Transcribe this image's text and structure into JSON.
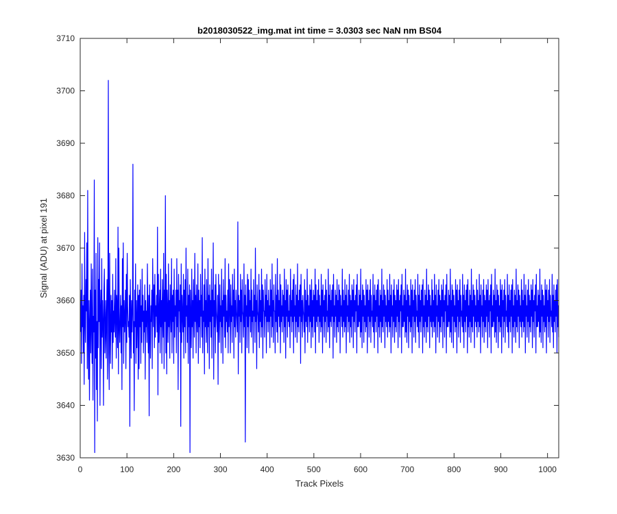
{
  "chart_data": {
    "type": "line",
    "title": "b2018030522_img.mat int time = 3.0303 sec  NaN nm BS04",
    "xlabel": "Track Pixels",
    "ylabel": "Signal (ADU) at pixel 191",
    "xlim": [
      0,
      1024
    ],
    "ylim": [
      3630,
      3710
    ],
    "xticks": [
      0,
      100,
      200,
      300,
      400,
      500,
      600,
      700,
      800,
      900,
      1000
    ],
    "yticks": [
      3630,
      3640,
      3650,
      3660,
      3670,
      3680,
      3690,
      3700,
      3710
    ],
    "grid": false,
    "legend": "none",
    "series_color": "#0000ff",
    "series": [
      {
        "x_start": 1,
        "x_step": 1,
        "values": [
          3654,
          3662,
          3648,
          3667,
          3655,
          3659,
          3650,
          3661,
          3644,
          3673,
          3656,
          3652,
          3664,
          3658,
          3671,
          3647,
          3681,
          3653,
          3645,
          3660,
          3641,
          3656,
          3662,
          3650,
          3667,
          3655,
          3648,
          3666,
          3641,
          3657,
          3654,
          3683,
          3631,
          3662,
          3649,
          3669,
          3643,
          3656,
          3637,
          3672,
          3651,
          3664,
          3656,
          3671,
          3640,
          3658,
          3662,
          3647,
          3668,
          3653,
          3660,
          3656,
          3640,
          3662,
          3666,
          3650,
          3654,
          3660,
          3649,
          3657,
          3664,
          3645,
          3660,
          3702,
          3650,
          3643,
          3669,
          3655,
          3648,
          3661,
          3654,
          3660,
          3647,
          3665,
          3652,
          3658,
          3654,
          3662,
          3656,
          3653,
          3668,
          3649,
          3661,
          3659,
          3651,
          3674,
          3646,
          3670,
          3655,
          3652,
          3657,
          3661,
          3650,
          3659,
          3643,
          3668,
          3655,
          3671,
          3648,
          3660,
          3654,
          3657,
          3662,
          3647,
          3665,
          3652,
          3669,
          3659,
          3655,
          3656,
          3653,
          3661,
          3636,
          3664,
          3658,
          3649,
          3660,
          3654,
          3658,
          3686,
          3650,
          3656,
          3639,
          3662,
          3655,
          3667,
          3648,
          3660,
          3651,
          3657,
          3663,
          3645,
          3661,
          3647,
          3662,
          3655,
          3664,
          3648,
          3659,
          3652,
          3666,
          3656,
          3661,
          3650,
          3658,
          3654,
          3663,
          3645,
          3660,
          3655,
          3658,
          3652,
          3667,
          3657,
          3650,
          3661,
          3638,
          3663,
          3655,
          3649,
          3659,
          3656,
          3662,
          3647,
          3668,
          3660,
          3655,
          3663,
          3651,
          3665,
          3653,
          3659,
          3657,
          3661,
          3654,
          3674,
          3642,
          3665,
          3652,
          3658,
          3662,
          3650,
          3666,
          3655,
          3660,
          3648,
          3664,
          3657,
          3653,
          3669,
          3647,
          3662,
          3656,
          3680,
          3650,
          3665,
          3646,
          3662,
          3658,
          3652,
          3667,
          3655,
          3660,
          3649,
          3663,
          3658,
          3654,
          3668,
          3650,
          3661,
          3656,
          3662,
          3648,
          3666,
          3653,
          3659,
          3657,
          3662,
          3650,
          3668,
          3655,
          3662,
          3643,
          3665,
          3658,
          3660,
          3654,
          3663,
          3636,
          3667,
          3652,
          3661,
          3657,
          3654,
          3665,
          3649,
          3662,
          3655,
          3664,
          3650,
          3670,
          3657,
          3659,
          3652,
          3666,
          3648,
          3661,
          3655,
          3663,
          3631,
          3662,
          3657,
          3651,
          3666,
          3655,
          3660,
          3649,
          3664,
          3658,
          3653,
          3669,
          3656,
          3661,
          3650,
          3663,
          3657,
          3654,
          3667,
          3648,
          3662,
          3655,
          3660,
          3651,
          3665,
          3657,
          3661,
          3653,
          3672,
          3650,
          3658,
          3656,
          3663,
          3646,
          3666,
          3655,
          3660,
          3652,
          3664,
          3657,
          3650,
          3668,
          3655,
          3661,
          3647,
          3663,
          3656,
          3660,
          3653,
          3666,
          3649,
          3662,
          3657,
          3671,
          3645,
          3660,
          3655,
          3663,
          3650,
          3665,
          3658,
          3656,
          3654,
          3661,
          3644,
          3665,
          3657,
          3652,
          3663,
          3656,
          3659,
          3650,
          3666,
          3655,
          3660,
          3648,
          3664,
          3657,
          3661,
          3653,
          3668,
          3651,
          3661,
          3656,
          3658,
          3654,
          3662,
          3650,
          3667,
          3655,
          3664,
          3658,
          3650,
          3663,
          3656,
          3659,
          3652,
          3665,
          3657,
          3662,
          3649,
          3666,
          3655,
          3660,
          3653,
          3662,
          3658,
          3656,
          3654,
          3675,
          3646,
          3661,
          3657,
          3660,
          3652,
          3665,
          3656,
          3662,
          3650,
          3664,
          3658,
          3657,
          3653,
          3667,
          3655,
          3661,
          3633,
          3663,
          3657,
          3659,
          3651,
          3665,
          3655,
          3664,
          3650,
          3662,
          3657,
          3660,
          3654,
          3666,
          3653,
          3662,
          3656,
          3658,
          3650,
          3664,
          3657,
          3661,
          3652,
          3670,
          3656,
          3660,
          3647,
          3663,
          3658,
          3657,
          3654,
          3665,
          3651,
          3662,
          3656,
          3660,
          3653,
          3666,
          3655,
          3663,
          3649,
          3662,
          3658,
          3658,
          3653,
          3664,
          3657,
          3661,
          3650,
          3665,
          3656,
          3660,
          3654,
          3662,
          3656,
          3659,
          3651,
          3664,
          3657,
          3662,
          3653,
          3667,
          3655,
          3660,
          3652,
          3663,
          3658,
          3658,
          3650,
          3665,
          3656,
          3661,
          3654,
          3668,
          3652,
          3662,
          3657,
          3660,
          3655,
          3665,
          3650,
          3663,
          3656,
          3659,
          3654,
          3662,
          3657,
          3661,
          3652,
          3666,
          3655,
          3660,
          3649,
          3664,
          3657,
          3662,
          3653,
          3663,
          3656,
          3658,
          3655,
          3661,
          3651,
          3666,
          3657,
          3660,
          3654,
          3662,
          3656,
          3664,
          3650,
          3665,
          3657,
          3659,
          3653,
          3663,
          3656,
          3661,
          3652,
          3667,
          3655,
          3660,
          3654,
          3662,
          3657,
          3663,
          3648,
          3665,
          3656,
          3660,
          3653,
          3661,
          3658,
          3657,
          3654,
          3664,
          3650,
          3662,
          3656,
          3660,
          3655,
          3666,
          3652,
          3661,
          3657,
          3659,
          3654,
          3663,
          3656,
          3662,
          3651,
          3664,
          3655,
          3660,
          3653,
          3662,
          3657,
          3661,
          3654,
          3666,
          3650,
          3663,
          3656,
          3660,
          3655,
          3662,
          3657,
          3664,
          3652,
          3661,
          3656,
          3659,
          3654,
          3665,
          3655,
          3662,
          3650,
          3663,
          3657,
          3660,
          3653,
          3661,
          3656,
          3664,
          3652,
          3662,
          3657,
          3658,
          3654,
          3666,
          3655,
          3661,
          3651,
          3663,
          3656,
          3660,
          3655,
          3662,
          3657,
          3663,
          3649,
          3665,
          3656,
          3659,
          3653,
          3662,
          3657,
          3661,
          3652,
          3664,
          3655,
          3660,
          3654,
          3663,
          3656,
          3662,
          3650,
          3661,
          3657,
          3659,
          3655,
          3666,
          3653,
          3662,
          3656,
          3660,
          3654,
          3664,
          3655,
          3661,
          3650,
          3663,
          3657,
          3659,
          3654,
          3662,
          3656,
          3665,
          3652,
          3661,
          3655,
          3660,
          3653,
          3663,
          3657,
          3662,
          3651,
          3664,
          3656,
          3660,
          3654,
          3661,
          3658,
          3663,
          3650,
          3665,
          3655,
          3659,
          3655,
          3662,
          3656,
          3661,
          3653,
          3666,
          3654,
          3660,
          3651,
          3663,
          3657,
          3662,
          3652,
          3661,
          3656,
          3659,
          3654,
          3664,
          3655,
          3662,
          3650,
          3663,
          3657,
          3660,
          3653,
          3662,
          3656,
          3664,
          3652,
          3661,
          3657,
          3658,
          3655,
          3665,
          3654,
          3661,
          3651,
          3663,
          3656,
          3660,
          3654,
          3662,
          3657,
          3663,
          3650,
          3664,
          3655,
          3659,
          3653,
          3662,
          3656,
          3661,
          3652,
          3666,
          3655,
          3660,
          3654,
          3663,
          3657,
          3662,
          3651,
          3661,
          3656,
          3659,
          3655,
          3664,
          3653,
          3662,
          3656,
          3660,
          3654,
          3665,
          3655,
          3661,
          3650,
          3663,
          3657,
          3659,
          3653,
          3662,
          3656,
          3664,
          3652,
          3661,
          3655,
          3660,
          3654,
          3663,
          3657,
          3662,
          3651,
          3664,
          3656,
          3660,
          3653,
          3661,
          3658,
          3663,
          3650,
          3665,
          3655,
          3659,
          3655,
          3662,
          3656,
          3661,
          3653,
          3666,
          3654,
          3660,
          3652,
          3663,
          3657,
          3662,
          3651,
          3661,
          3656,
          3659,
          3654,
          3664,
          3655,
          3662,
          3650,
          3663,
          3657,
          3660,
          3653,
          3662,
          3656,
          3664,
          3652,
          3661,
          3657,
          3658,
          3655,
          3665,
          3654,
          3661,
          3651,
          3663,
          3656,
          3660,
          3654,
          3662,
          3657,
          3663,
          3650,
          3664,
          3655,
          3659,
          3653,
          3662,
          3656,
          3661,
          3652,
          3666,
          3655,
          3660,
          3654,
          3663,
          3657,
          3662,
          3651,
          3661,
          3656,
          3659,
          3655,
          3664,
          3653,
          3662,
          3656,
          3660,
          3654,
          3665,
          3655,
          3661,
          3650,
          3663,
          3657,
          3659,
          3653,
          3662,
          3656,
          3664,
          3652,
          3661,
          3655,
          3660,
          3654,
          3663,
          3657,
          3662,
          3651,
          3664,
          3656,
          3660,
          3653,
          3661,
          3658,
          3663,
          3650,
          3665,
          3655,
          3659,
          3655,
          3662,
          3656,
          3661,
          3653,
          3666,
          3654,
          3660,
          3652,
          3663,
          3657,
          3662,
          3651,
          3661,
          3656,
          3659,
          3654,
          3664,
          3655,
          3662,
          3650,
          3663,
          3657,
          3660,
          3653,
          3662,
          3656,
          3664,
          3652,
          3661,
          3657,
          3658,
          3655,
          3665,
          3654,
          3661,
          3651,
          3663,
          3656,
          3660,
          3654,
          3662,
          3657,
          3663,
          3650,
          3664,
          3655,
          3659,
          3653,
          3662,
          3656,
          3661,
          3652,
          3666,
          3655,
          3660,
          3654,
          3663,
          3657,
          3662,
          3651,
          3661,
          3656,
          3659,
          3655,
          3664,
          3653,
          3662,
          3656,
          3660,
          3654,
          3665,
          3655,
          3661,
          3650,
          3663,
          3657,
          3659,
          3653,
          3662,
          3656,
          3664,
          3652,
          3661,
          3655,
          3660,
          3654,
          3663,
          3657,
          3662,
          3651,
          3664,
          3656,
          3660,
          3653,
          3661,
          3658,
          3663,
          3650,
          3665,
          3655,
          3659,
          3655,
          3662,
          3656,
          3661,
          3653,
          3666,
          3654,
          3660,
          3652,
          3663,
          3657,
          3662,
          3651,
          3661,
          3656,
          3659,
          3654,
          3664,
          3655,
          3662,
          3650,
          3663,
          3657,
          3660,
          3653,
          3662,
          3656,
          3664,
          3652,
          3661,
          3657,
          3658,
          3655,
          3665,
          3654,
          3661,
          3651,
          3663,
          3656,
          3660,
          3654,
          3662,
          3657,
          3663,
          3650,
          3664,
          3655,
          3659,
          3653,
          3662,
          3656,
          3661,
          3652,
          3666,
          3655,
          3660,
          3654,
          3663,
          3657,
          3662,
          3651,
          3661,
          3656,
          3659,
          3655,
          3664,
          3653,
          3662,
          3656,
          3660,
          3654,
          3665,
          3655,
          3661,
          3650,
          3663,
          3657,
          3659,
          3653,
          3662,
          3656,
          3664,
          3652,
          3661,
          3655,
          3660,
          3654,
          3663,
          3657,
          3662,
          3651,
          3664,
          3656,
          3660,
          3653,
          3661,
          3658,
          3663,
          3650,
          3665,
          3655,
          3659,
          3655,
          3662,
          3656,
          3661,
          3653,
          3666,
          3654,
          3660,
          3652,
          3663,
          3657,
          3662,
          3651,
          3661,
          3656,
          3659,
          3654,
          3664,
          3655,
          3662,
          3650,
          3663,
          3657,
          3660,
          3653,
          3662,
          3656,
          3664,
          3652,
          3661,
          3657,
          3658,
          3655,
          3665,
          3654,
          3661,
          3651,
          3663,
          3656,
          3660,
          3654,
          3662,
          3657,
          3663,
          3650,
          3664,
          3655,
          3659,
          3653
        ]
      }
    ]
  }
}
